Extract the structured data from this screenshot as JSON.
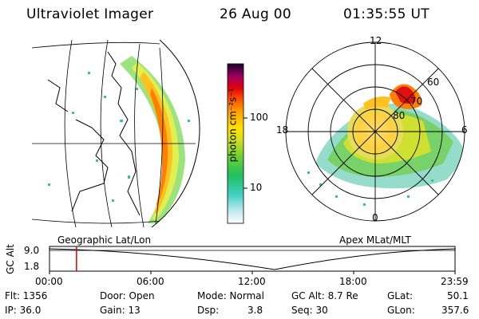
{
  "header": {
    "instrument": "Ultraviolet Imager",
    "date": "26 Aug 00",
    "time": "01:35:55 UT"
  },
  "colorbar": {
    "unit_label": "photon cm⁻²s⁻¹",
    "ticks": [
      "100",
      "10"
    ],
    "scale": "log"
  },
  "left_panel": {
    "caption": "Geographic Lat/Lon"
  },
  "right_panel": {
    "caption": "Apex MLat/MLT",
    "mlt_labels": {
      "top": "12",
      "left": "18",
      "right": "6",
      "bottom": "0"
    },
    "lat_labels": [
      "60",
      "70",
      "80"
    ]
  },
  "altitude_plot": {
    "ylabel": "GC Alt",
    "yticks": [
      "9.0",
      "1.8"
    ],
    "xticks": [
      "00:00",
      "06:00",
      "12:00",
      "18:00",
      "23:59"
    ],
    "marker_time_fraction": 0.0666,
    "min_time_fraction": 0.555
  },
  "info": {
    "flt": "Flt: 1356",
    "ip": "IP: 36.0",
    "door": "Door: Open",
    "gain": "Gain: 13",
    "mode": "Mode: Normal",
    "dsp_label": "Dsp:",
    "dsp_value": "3.8",
    "gc_alt": "GC Alt: 8.7 Re",
    "seq": "Seq: 30",
    "glat_label": "GLat:",
    "glat_value": "50.1",
    "glon_label": "GLon:",
    "glon_value": "357.6"
  },
  "colors": {
    "marker": "#e00000",
    "background": "#ffffff"
  }
}
